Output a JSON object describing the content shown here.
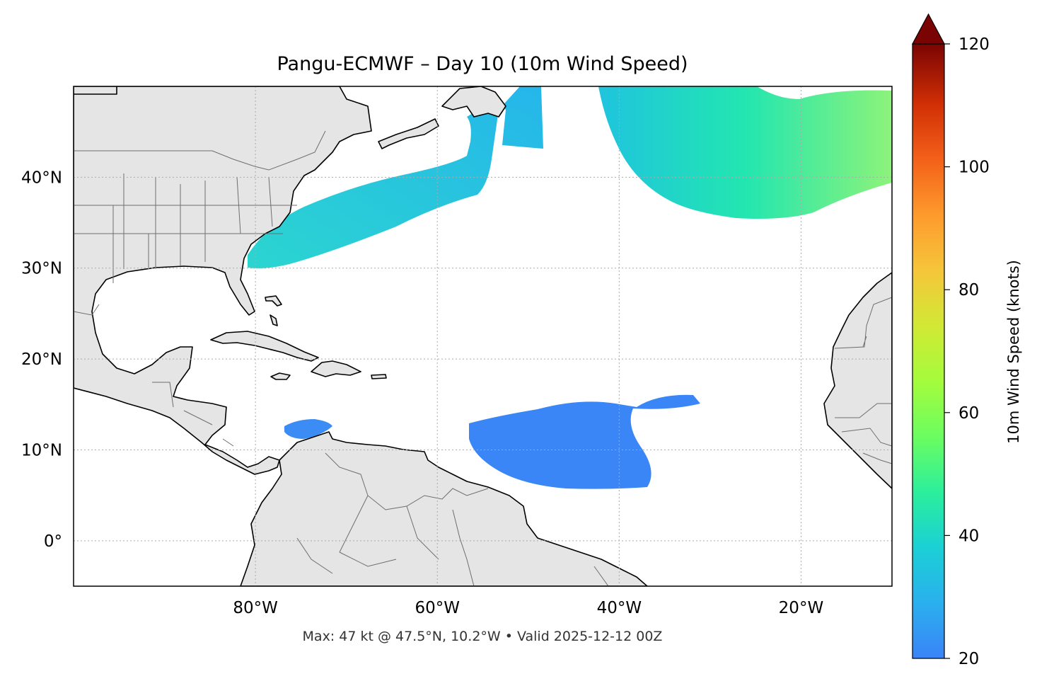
{
  "title": "Pangu-ECMWF – Day 10 (10m Wind Speed)",
  "footer": "Max: 47 kt @ 47.5°N, 10.2°W • Valid 2025-12-12 00Z",
  "map": {
    "lon_range": [
      -100,
      -10
    ],
    "lat_range": [
      -5,
      50
    ],
    "gridlines": true,
    "land_color": "#e5e5e5",
    "ocean_color": "#ffffff",
    "coastline_color": "#000000",
    "border_color": "#6e6e6e",
    "x_ticks": [
      {
        "lon": -80,
        "label": "80°W"
      },
      {
        "lon": -60,
        "label": "60°W"
      },
      {
        "lon": -40,
        "label": "40°W"
      },
      {
        "lon": -20,
        "label": "20°W"
      }
    ],
    "y_ticks": [
      {
        "lat": 40,
        "label": "40°N"
      },
      {
        "lat": 30,
        "label": "30°N"
      },
      {
        "lat": 20,
        "label": "20°N"
      },
      {
        "lat": 10,
        "label": "10°N"
      },
      {
        "lat": 0,
        "label": "0°"
      }
    ]
  },
  "max_wind": {
    "speed_kt": 47,
    "lat": 47.5,
    "lon": -10.2
  },
  "colorbar": {
    "label": "10m Wind Speed (knots)",
    "range": [
      20,
      120
    ],
    "extend": "max",
    "colormap": "turbo",
    "ticks": [
      {
        "value": 20,
        "label": "20"
      },
      {
        "value": 40,
        "label": "40"
      },
      {
        "value": 60,
        "label": "60"
      },
      {
        "value": 80,
        "label": "80"
      },
      {
        "value": 100,
        "label": "100"
      },
      {
        "value": 120,
        "label": "120"
      }
    ]
  }
}
